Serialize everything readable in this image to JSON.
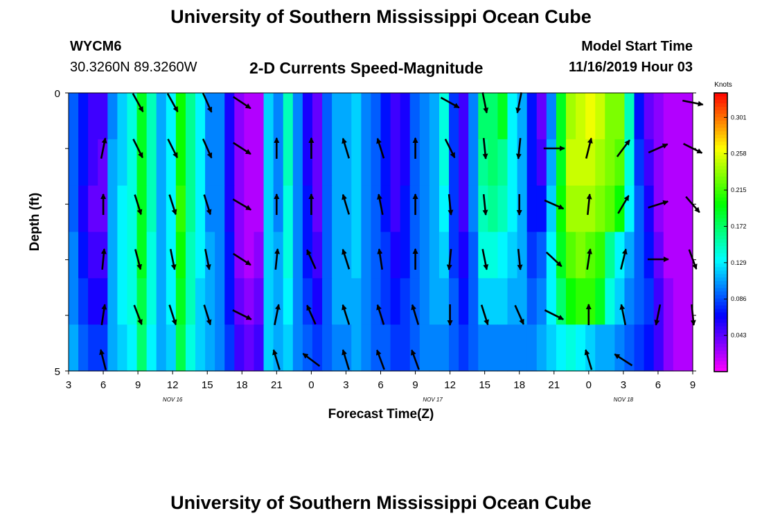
{
  "header": {
    "title": "University of Southern Mississippi Ocean Cube",
    "station_id": "WYCM6",
    "coords": "30.3260N 89.3260W",
    "chart_title": "2-D Currents Speed-Magnitude",
    "model_label": "Model Start Time",
    "model_time": "11/16/2019 Hour 03"
  },
  "footer": {
    "title": "University of Southern Mississippi Ocean Cube"
  },
  "chart_data": {
    "type": "heatmap",
    "title": "2-D Currents Speed-Magnitude",
    "xlabel": "Forecast Time(Z)",
    "ylabel": "Depth (ft)",
    "x_tick_labels": [
      "3",
      "6",
      "9",
      "12",
      "15",
      "18",
      "21",
      "0",
      "3",
      "6",
      "9",
      "12",
      "15",
      "18",
      "21",
      "0",
      "3",
      "6",
      "9"
    ],
    "date_labels": [
      {
        "label": "NOV 16",
        "tick_index": 3
      },
      {
        "label": "NOV 17",
        "tick_index": 10.5
      },
      {
        "label": "NOV 18",
        "tick_index": 16
      }
    ],
    "y_range": [
      0,
      5
    ],
    "y_tick_labels": [
      "0",
      "5"
    ],
    "colorbar": {
      "unit": "Knots",
      "min": 0.0,
      "max": 0.33,
      "tick_labels": [
        "0.301",
        "0.258",
        "0.215",
        "0.172",
        "0.129",
        "0.086",
        "0.043"
      ],
      "tick_values": [
        0.301,
        0.258,
        0.215,
        0.172,
        0.129,
        0.086,
        0.043
      ]
    },
    "hours_per_column": 1,
    "speed_rows": [
      [
        0.09,
        0.07,
        0.05,
        0.05,
        0.1,
        0.12,
        0.14,
        0.19,
        0.15,
        0.11,
        0.13,
        0.2,
        0.16,
        0.13,
        0.1,
        0.1,
        0.06,
        0.03,
        0.02,
        0.02,
        0.12,
        0.1,
        0.15,
        0.1,
        0.06,
        0.04,
        0.09,
        0.11,
        0.11,
        0.12,
        0.1,
        0.09,
        0.07,
        0.05,
        0.06,
        0.09,
        0.1,
        0.11,
        0.14,
        0.08,
        0.05,
        0.1,
        0.17,
        0.17,
        0.19,
        0.13,
        0.11,
        0.07,
        0.04,
        0.1,
        0.19,
        0.24,
        0.25,
        0.26,
        0.25,
        0.23,
        0.23,
        0.15,
        0.07,
        0.04,
        0.03,
        0.02,
        0.02,
        0.02
      ],
      [
        0.09,
        0.07,
        0.05,
        0.04,
        0.11,
        0.12,
        0.14,
        0.19,
        0.15,
        0.11,
        0.13,
        0.2,
        0.16,
        0.13,
        0.1,
        0.1,
        0.06,
        0.03,
        0.02,
        0.02,
        0.12,
        0.1,
        0.15,
        0.1,
        0.06,
        0.04,
        0.09,
        0.11,
        0.11,
        0.12,
        0.1,
        0.09,
        0.07,
        0.05,
        0.06,
        0.09,
        0.1,
        0.11,
        0.14,
        0.08,
        0.05,
        0.1,
        0.16,
        0.17,
        0.16,
        0.13,
        0.11,
        0.07,
        0.05,
        0.11,
        0.19,
        0.25,
        0.25,
        0.25,
        0.24,
        0.23,
        0.22,
        0.14,
        0.08,
        0.05,
        0.03,
        0.02,
        0.02,
        0.02
      ],
      [
        0.09,
        0.06,
        0.04,
        0.04,
        0.11,
        0.13,
        0.14,
        0.19,
        0.15,
        0.11,
        0.13,
        0.21,
        0.16,
        0.13,
        0.1,
        0.1,
        0.06,
        0.03,
        0.02,
        0.02,
        0.12,
        0.1,
        0.14,
        0.1,
        0.07,
        0.04,
        0.09,
        0.11,
        0.11,
        0.12,
        0.1,
        0.09,
        0.07,
        0.05,
        0.07,
        0.09,
        0.1,
        0.11,
        0.13,
        0.08,
        0.05,
        0.1,
        0.15,
        0.16,
        0.15,
        0.13,
        0.11,
        0.07,
        0.07,
        0.12,
        0.2,
        0.24,
        0.24,
        0.24,
        0.23,
        0.22,
        0.2,
        0.13,
        0.09,
        0.06,
        0.03,
        0.02,
        0.02,
        0.02
      ],
      [
        0.1,
        0.07,
        0.05,
        0.05,
        0.11,
        0.13,
        0.14,
        0.19,
        0.14,
        0.11,
        0.13,
        0.2,
        0.15,
        0.13,
        0.11,
        0.1,
        0.07,
        0.03,
        0.02,
        0.03,
        0.12,
        0.11,
        0.14,
        0.1,
        0.07,
        0.05,
        0.09,
        0.11,
        0.11,
        0.12,
        0.1,
        0.09,
        0.08,
        0.06,
        0.07,
        0.09,
        0.1,
        0.11,
        0.12,
        0.08,
        0.06,
        0.09,
        0.14,
        0.14,
        0.13,
        0.12,
        0.11,
        0.08,
        0.09,
        0.13,
        0.19,
        0.22,
        0.23,
        0.22,
        0.21,
        0.16,
        0.13,
        0.11,
        0.09,
        0.07,
        0.04,
        0.02,
        0.02,
        0.02
      ],
      [
        0.1,
        0.08,
        0.06,
        0.06,
        0.11,
        0.13,
        0.14,
        0.18,
        0.14,
        0.11,
        0.13,
        0.19,
        0.15,
        0.12,
        0.11,
        0.1,
        0.07,
        0.04,
        0.03,
        0.04,
        0.12,
        0.11,
        0.13,
        0.1,
        0.08,
        0.06,
        0.09,
        0.11,
        0.11,
        0.11,
        0.1,
        0.09,
        0.08,
        0.07,
        0.08,
        0.09,
        0.1,
        0.11,
        0.11,
        0.09,
        0.07,
        0.09,
        0.12,
        0.12,
        0.12,
        0.11,
        0.11,
        0.09,
        0.1,
        0.13,
        0.17,
        0.2,
        0.21,
        0.21,
        0.19,
        0.14,
        0.12,
        0.1,
        0.09,
        0.08,
        0.05,
        0.03,
        0.02,
        0.02
      ],
      [
        0.11,
        0.09,
        0.08,
        0.08,
        0.11,
        0.12,
        0.13,
        0.17,
        0.13,
        0.11,
        0.12,
        0.18,
        0.14,
        0.12,
        0.11,
        0.1,
        0.08,
        0.05,
        0.04,
        0.05,
        0.12,
        0.11,
        0.12,
        0.1,
        0.09,
        0.08,
        0.09,
        0.1,
        0.1,
        0.11,
        0.1,
        0.09,
        0.09,
        0.08,
        0.08,
        0.09,
        0.1,
        0.1,
        0.1,
        0.09,
        0.08,
        0.09,
        0.1,
        0.1,
        0.1,
        0.1,
        0.1,
        0.1,
        0.11,
        0.12,
        0.13,
        0.14,
        0.13,
        0.12,
        0.11,
        0.11,
        0.1,
        0.09,
        0.08,
        0.07,
        0.05,
        0.03,
        0.02,
        0.02
      ]
    ],
    "vector_columns_hour": [
      6,
      9,
      12,
      15,
      18,
      21,
      24,
      27,
      30,
      33,
      36,
      39,
      42,
      45,
      48,
      51,
      54,
      57
    ],
    "vectors": [
      [
        null,
        [
          0.5,
          -0.9
        ],
        [
          0.5,
          -0.9
        ],
        [
          0.4,
          -0.9
        ],
        [
          0.9,
          -0.6
        ],
        null,
        null,
        null,
        null,
        null,
        [
          0.9,
          -0.5
        ],
        [
          0.2,
          -1
        ],
        [
          -0.2,
          -1
        ],
        null,
        null,
        null,
        null,
        [
          1,
          -0.2
        ]
      ],
      [
        [
          0.2,
          1
        ],
        [
          0.45,
          -0.9
        ],
        [
          0.45,
          -0.9
        ],
        [
          0.4,
          -0.9
        ],
        [
          0.85,
          -0.55
        ],
        [
          0,
          1
        ],
        [
          0,
          1
        ],
        [
          -0.3,
          1
        ],
        [
          -0.3,
          0.95
        ],
        [
          0,
          1
        ],
        [
          0.45,
          -0.9
        ],
        [
          0.1,
          -1
        ],
        [
          -0.1,
          -1
        ],
        [
          1,
          0
        ],
        [
          0.25,
          1
        ],
        [
          0.6,
          0.8
        ],
        [
          0.9,
          0.4
        ],
        [
          0.9,
          -0.45
        ]
      ],
      [
        [
          0,
          1
        ],
        [
          0.3,
          -0.95
        ],
        [
          0.3,
          -0.95
        ],
        [
          0.3,
          -0.95
        ],
        [
          0.85,
          -0.5
        ],
        [
          0,
          1
        ],
        [
          0,
          1
        ],
        [
          -0.3,
          1
        ],
        [
          -0.2,
          1
        ],
        [
          0,
          1
        ],
        [
          0.1,
          -1
        ],
        [
          0.1,
          -1
        ],
        [
          0,
          -1
        ],
        [
          0.9,
          -0.4
        ],
        [
          0.1,
          1
        ],
        [
          0.5,
          0.85
        ],
        [
          0.95,
          0.3
        ],
        [
          0.65,
          -0.75
        ]
      ],
      [
        [
          0.1,
          1
        ],
        [
          0.25,
          -0.95
        ],
        [
          0.2,
          -1
        ],
        [
          0.2,
          -1
        ],
        [
          0.85,
          -0.55
        ],
        [
          0.1,
          1
        ],
        [
          -0.4,
          0.9
        ],
        [
          -0.3,
          0.95
        ],
        [
          -0.15,
          1
        ],
        [
          0,
          1
        ],
        [
          -0.1,
          -1
        ],
        [
          0.2,
          -1
        ],
        [
          0.1,
          -1
        ],
        [
          0.75,
          -0.7
        ],
        [
          0.15,
          1
        ],
        [
          0.25,
          1
        ],
        [
          1,
          0
        ],
        [
          0.35,
          -0.95
        ]
      ],
      [
        [
          0.15,
          1
        ],
        [
          0.35,
          -0.9
        ],
        [
          0.3,
          -0.95
        ],
        [
          0.3,
          -0.95
        ],
        [
          0.9,
          -0.45
        ],
        [
          0.2,
          1
        ],
        [
          -0.4,
          0.9
        ],
        [
          -0.3,
          0.95
        ],
        [
          -0.3,
          0.95
        ],
        [
          -0.3,
          1
        ],
        [
          0,
          -1
        ],
        [
          0.3,
          -0.95
        ],
        [
          0.4,
          -0.9
        ],
        [
          0.9,
          -0.45
        ],
        [
          0,
          1
        ],
        [
          -0.2,
          1
        ],
        [
          -0.2,
          -1
        ],
        [
          0.1,
          -1
        ]
      ],
      [
        [
          -0.25,
          1
        ],
        null,
        null,
        null,
        null,
        [
          -0.3,
          1
        ],
        [
          -0.8,
          0.6
        ],
        [
          -0.3,
          1
        ],
        [
          -0.35,
          0.95
        ],
        [
          -0.35,
          0.95
        ],
        null,
        null,
        null,
        null,
        [
          -0.3,
          1
        ],
        [
          -0.85,
          0.55
        ],
        null,
        null
      ]
    ]
  }
}
